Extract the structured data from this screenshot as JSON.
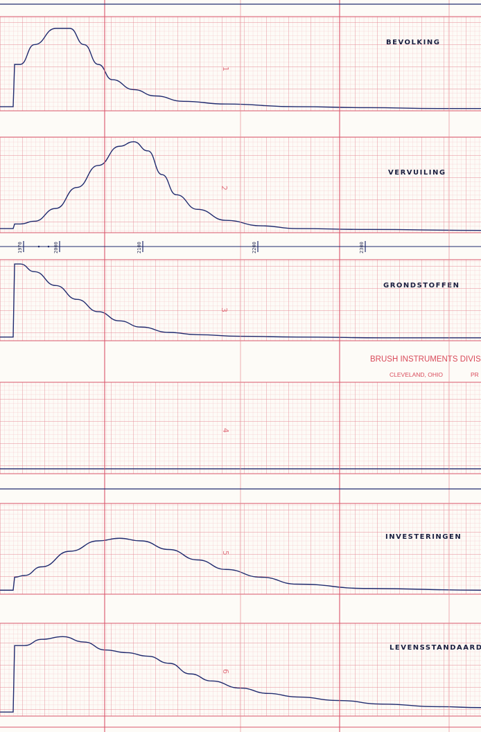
{
  "recorder": {
    "brand_line1": "BRUSH INSTRUMENTS DIVIS",
    "brand_line2_city": "CLEVELAND, OHIO",
    "brand_line2_tail": "PR"
  },
  "colors": {
    "paper": "#fdfbf7",
    "grid_minor": "#f2b8bd",
    "grid_major": "#e58a94",
    "grid_bold": "#d9546a",
    "trace": "#1f2a6e",
    "ink": "#1a1f40"
  },
  "chart_data": [
    {
      "type": "line",
      "channel": "1",
      "label": "Bevolking",
      "x": [
        0,
        1,
        5,
        15,
        30,
        40,
        50,
        60,
        70,
        85,
        100
      ],
      "y": [
        0.03,
        0.5,
        0.5,
        0.72,
        0.9,
        0.9,
        0.72,
        0.5,
        0.33,
        0.22,
        0.15
      ],
      "x_extra": [
        120,
        150,
        200,
        250,
        300,
        330
      ],
      "y_extra": [
        0.09,
        0.06,
        0.03,
        0.02,
        0.01,
        0.01
      ]
    },
    {
      "type": "line",
      "channel": "2",
      "label": "Vervuiling",
      "x": [
        0,
        1,
        5,
        15,
        30,
        45,
        60,
        75,
        85,
        95,
        105,
        115,
        130,
        150,
        175,
        200,
        250,
        330
      ],
      "y": [
        0.03,
        0.08,
        0.08,
        0.11,
        0.25,
        0.48,
        0.72,
        0.93,
        0.98,
        0.88,
        0.62,
        0.4,
        0.24,
        0.12,
        0.06,
        0.03,
        0.02,
        0.01
      ]
    },
    {
      "type": "line",
      "channel": "3",
      "label": "Grondstoffen",
      "x": [
        0,
        1,
        5,
        15,
        30,
        45,
        60,
        75,
        90,
        110,
        130,
        160,
        200,
        260,
        330
      ],
      "y": [
        0.03,
        0.98,
        0.98,
        0.88,
        0.7,
        0.52,
        0.36,
        0.24,
        0.16,
        0.09,
        0.06,
        0.04,
        0.03,
        0.02,
        0.02
      ]
    },
    {
      "type": "line",
      "channel": "4",
      "label": "",
      "x": [
        0,
        330
      ],
      "y": [
        0.04,
        0.04
      ]
    },
    {
      "type": "line",
      "channel": "5",
      "label": "Investeringen",
      "x": [
        0,
        1,
        8,
        20,
        40,
        60,
        75,
        90,
        110,
        130,
        150,
        175,
        200,
        250,
        330
      ],
      "y": [
        0.03,
        0.18,
        0.2,
        0.3,
        0.48,
        0.6,
        0.63,
        0.6,
        0.5,
        0.38,
        0.27,
        0.18,
        0.1,
        0.05,
        0.03
      ]
    },
    {
      "type": "line",
      "channel": "6",
      "label": "Levensstandaard",
      "x": [
        0,
        1,
        8,
        20,
        35,
        50,
        65,
        80,
        95,
        110,
        125,
        140,
        160,
        180,
        200,
        230,
        260,
        300,
        330
      ],
      "y": [
        0.03,
        0.78,
        0.78,
        0.85,
        0.88,
        0.82,
        0.73,
        0.7,
        0.66,
        0.58,
        0.46,
        0.38,
        0.3,
        0.24,
        0.2,
        0.16,
        0.12,
        0.09,
        0.08
      ]
    }
  ],
  "time_marks": {
    "labels": [
      "1970",
      "2000",
      "2100",
      "2200",
      "2300"
    ]
  }
}
